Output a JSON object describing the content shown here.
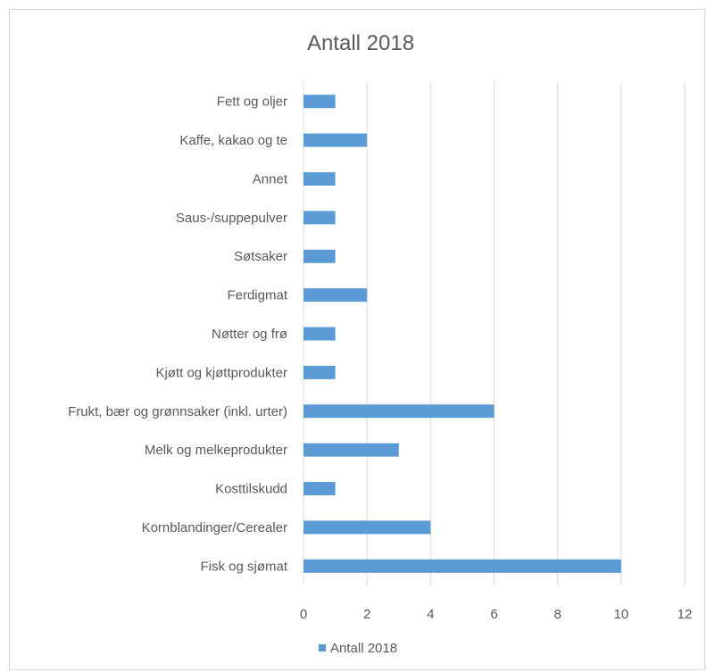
{
  "chart_data": {
    "type": "bar",
    "orientation": "horizontal",
    "title": "Antall 2018",
    "xlabel": "",
    "ylabel": "",
    "categories": [
      "Fett og oljer",
      "Kaffe, kakao og te",
      "Annet",
      "Saus-/suppepulver",
      "Søtsaker",
      "Ferdigmat",
      "Nøtter og frø",
      "Kjøtt og kjøttprodukter",
      "Frukt, bær og grønnsaker (inkl. urter)",
      "Melk og melkeprodukter",
      "Kosttilskudd",
      "Kornblandinger/Cerealer",
      "Fisk og sjømat"
    ],
    "series": [
      {
        "name": "Antall 2018",
        "values": [
          1,
          2,
          1,
          1,
          1,
          2,
          1,
          1,
          6,
          3,
          1,
          4,
          10
        ],
        "color": "#5b9bd5"
      }
    ],
    "xlim": [
      0,
      12
    ],
    "xticks": [
      "0",
      "2",
      "4",
      "6",
      "8",
      "10",
      "12"
    ],
    "grid": "vertical",
    "legend": "bottom",
    "colors": {
      "bar": "#5b9bd5",
      "grid": "#d9d9d9",
      "text": "#595959"
    }
  }
}
